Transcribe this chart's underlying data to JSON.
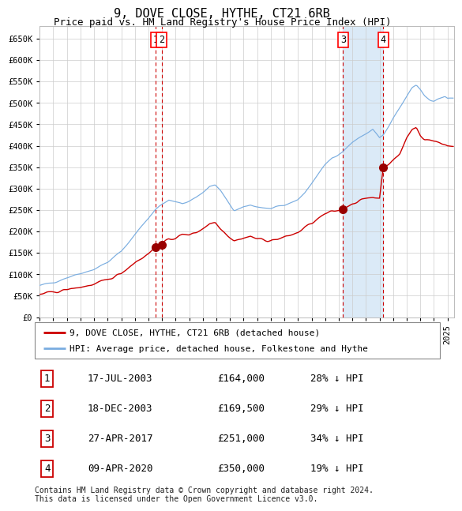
{
  "title": "9, DOVE CLOSE, HYTHE, CT21 6RB",
  "subtitle": "Price paid vs. HM Land Registry's House Price Index (HPI)",
  "xlim_start": 1995.0,
  "xlim_end": 2025.5,
  "ylim": [
    0,
    680000
  ],
  "yticks": [
    0,
    50000,
    100000,
    150000,
    200000,
    250000,
    300000,
    350000,
    400000,
    450000,
    500000,
    550000,
    600000,
    650000
  ],
  "ytick_labels": [
    "£0",
    "£50K",
    "£100K",
    "£150K",
    "£200K",
    "£250K",
    "£300K",
    "£350K",
    "£400K",
    "£450K",
    "£500K",
    "£550K",
    "£600K",
    "£650K"
  ],
  "hpi_color": "#7aade0",
  "price_color": "#cc0000",
  "grid_color": "#cccccc",
  "background_color": "#ffffff",
  "vline_color": "#cc0000",
  "highlight_fill": "#dbeaf7",
  "transactions": [
    {
      "num": 1,
      "date": "17-JUL-2003",
      "date_x": 2003.54,
      "price": 164000,
      "label": "£164,000",
      "pct": "28% ↓ HPI"
    },
    {
      "num": 2,
      "date": "18-DEC-2003",
      "date_x": 2003.96,
      "price": 169500,
      "label": "£169,500",
      "pct": "29% ↓ HPI"
    },
    {
      "num": 3,
      "date": "27-APR-2017",
      "date_x": 2017.32,
      "price": 251000,
      "label": "£251,000",
      "pct": "34% ↓ HPI"
    },
    {
      "num": 4,
      "date": "09-APR-2020",
      "date_x": 2020.27,
      "price": 350000,
      "label": "£350,000",
      "pct": "19% ↓ HPI"
    }
  ],
  "legend_entries": [
    {
      "label": "9, DOVE CLOSE, HYTHE, CT21 6RB (detached house)",
      "color": "#cc0000"
    },
    {
      "label": "HPI: Average price, detached house, Folkestone and Hythe",
      "color": "#7aade0"
    }
  ],
  "footer": "Contains HM Land Registry data © Crown copyright and database right 2024.\nThis data is licensed under the Open Government Licence v3.0.",
  "title_fontsize": 11,
  "subtitle_fontsize": 9,
  "tick_fontsize": 7.5,
  "label_fontsize": 8.5
}
